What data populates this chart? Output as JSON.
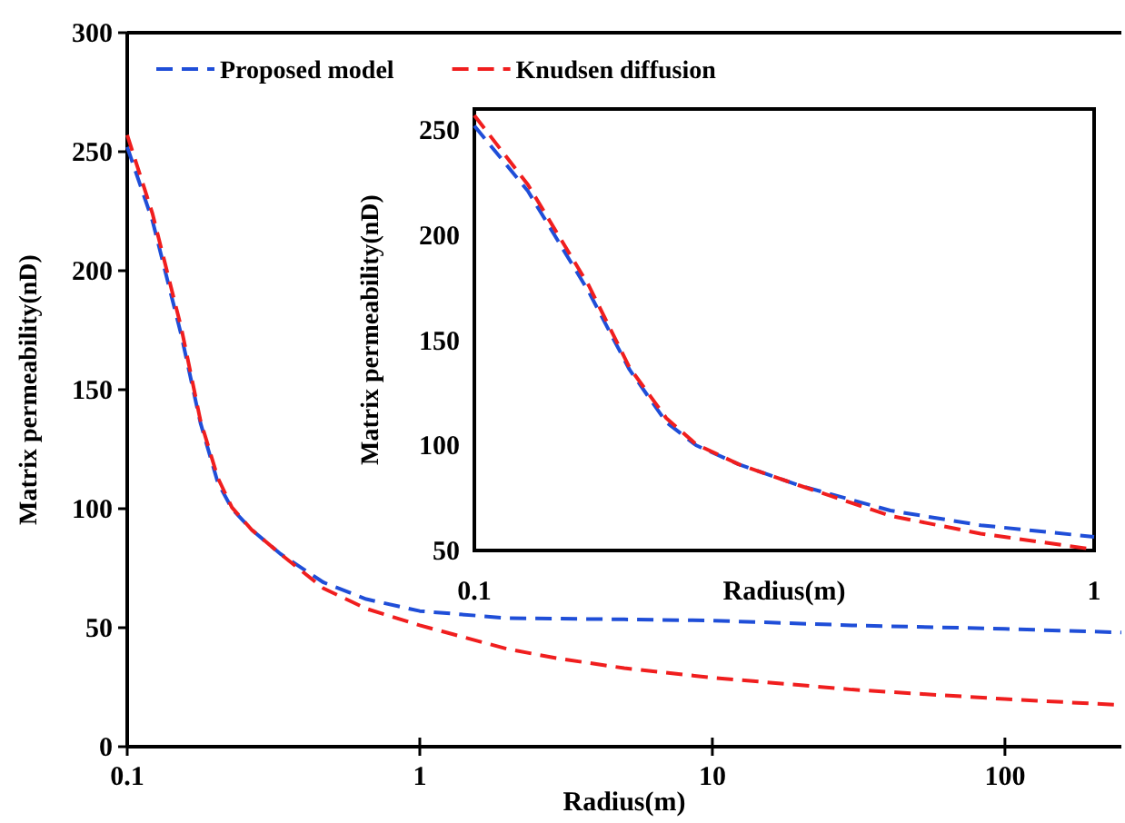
{
  "chart_data": [
    {
      "type": "line",
      "xlabel": "Radius(m)",
      "ylabel": "Matrix permeability(nD)",
      "log": "x",
      "xlim": [
        0.1,
        250
      ],
      "xticks": [
        0.1,
        1,
        10,
        100
      ],
      "ylim": [
        0,
        300
      ],
      "yticks": [
        0,
        50,
        100,
        150,
        200,
        250,
        300
      ],
      "legend": "top left",
      "line_style": "dashed",
      "series": [
        {
          "name": "Proposed model",
          "color": "#1f4ed8",
          "x": [
            0.1,
            0.122,
            0.153,
            0.178,
            0.204,
            0.228,
            0.267,
            0.334,
            0.469,
            0.656,
            1,
            2,
            5,
            10,
            30,
            100,
            250
          ],
          "values": [
            252,
            221,
            173,
            136,
            111,
            100,
            91,
            81,
            69,
            62,
            57,
            54,
            53.5,
            53,
            51,
            49.5,
            48
          ]
        },
        {
          "name": "Knudsen diffusion",
          "color": "#f01e1e",
          "x": [
            0.1,
            0.122,
            0.153,
            0.178,
            0.204,
            0.228,
            0.267,
            0.334,
            0.469,
            0.656,
            1,
            2,
            3,
            5,
            10,
            30,
            100,
            250
          ],
          "values": [
            257,
            224,
            176,
            137,
            113,
            100.5,
            91,
            81,
            66.5,
            58,
            51,
            41,
            37,
            33,
            29,
            24,
            20,
            17.5
          ]
        }
      ]
    },
    {
      "type": "line",
      "xlabel": "Radius(m)",
      "ylabel": "Matrix permeability(nD)",
      "log": "x",
      "xlim": [
        0.1,
        1
      ],
      "xticks": [
        0.1,
        1
      ],
      "ylim": [
        50,
        260
      ],
      "yticks": [
        50,
        100,
        150,
        200,
        250
      ],
      "line_style": "dashed",
      "series": [
        {
          "color": "#1f4ed8",
          "x": [
            0.1,
            0.122,
            0.153,
            0.178,
            0.204,
            0.228,
            0.267,
            0.334,
            0.469,
            0.656,
            1
          ],
          "values": [
            252,
            221,
            173,
            136,
            111,
            100,
            91,
            81,
            69,
            62,
            56.5
          ]
        },
        {
          "color": "#f01e1e",
          "x": [
            0.1,
            0.122,
            0.153,
            0.178,
            0.204,
            0.228,
            0.267,
            0.334,
            0.469,
            0.656,
            1
          ],
          "values": [
            257,
            224,
            176,
            137,
            113,
            100.5,
            91,
            81,
            66.5,
            58,
            50.5
          ]
        }
      ]
    }
  ]
}
